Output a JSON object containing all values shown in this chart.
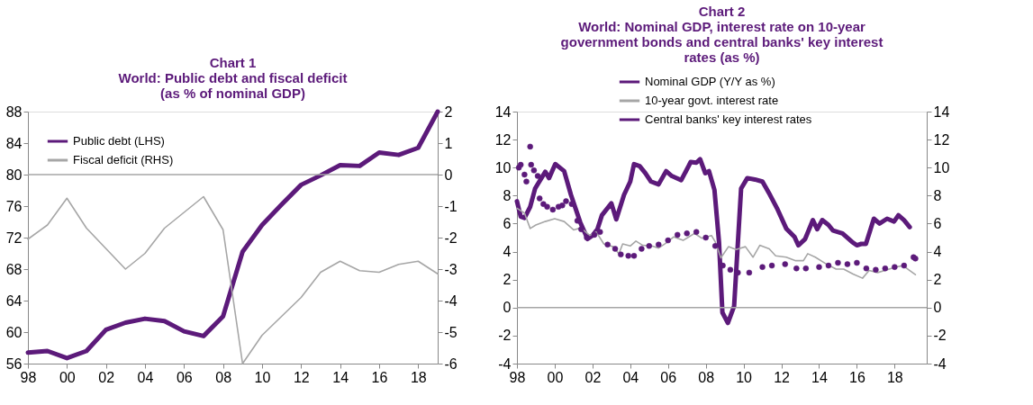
{
  "chart_data": [
    {
      "type": "line",
      "title": [
        "Chart 1",
        "World: Public debt and fiscal deficit",
        "(as % of nominal GDP)"
      ],
      "x": [
        1998,
        1999,
        2000,
        2001,
        2002,
        2003,
        2004,
        2005,
        2006,
        2007,
        2008,
        2009,
        2010,
        2011,
        2012,
        2013,
        2014,
        2015,
        2016,
        2017,
        2018,
        2019
      ],
      "series": [
        {
          "name": "Public debt (LHS)",
          "color": "#5c1a7a",
          "values": [
            57.4,
            57.6,
            56.7,
            57.6,
            60.3,
            61.2,
            61.7,
            61.4,
            60.1,
            59.5,
            62.0,
            70.2,
            73.6,
            76.2,
            78.7,
            79.9,
            81.2,
            81.1,
            82.8,
            82.5,
            83.4,
            88.0
          ]
        },
        {
          "name": "Fiscal deficit (RHS)",
          "color": "#a6a6a6",
          "axis": "y2",
          "values": [
            -2.05,
            -1.6,
            -0.75,
            -1.7,
            -2.35,
            -3.0,
            -2.5,
            -1.7,
            -1.2,
            -0.7,
            -1.75,
            -6.0,
            -5.1,
            -4.5,
            -3.9,
            -3.1,
            -2.75,
            -3.05,
            -3.1,
            -2.85,
            -2.75,
            -3.15
          ]
        }
      ],
      "xlim": [
        1998,
        2019
      ],
      "xticks": [
        {
          "value": 1998,
          "label": "98"
        },
        {
          "value": 2000,
          "label": "00"
        },
        {
          "value": 2002,
          "label": "02"
        },
        {
          "value": 2004,
          "label": "04"
        },
        {
          "value": 2006,
          "label": "06"
        },
        {
          "value": 2008,
          "label": "08"
        },
        {
          "value": 2010,
          "label": "10"
        },
        {
          "value": 2012,
          "label": "12"
        },
        {
          "value": 2014,
          "label": "14"
        },
        {
          "value": 2016,
          "label": "16"
        },
        {
          "value": 2018,
          "label": "18"
        }
      ],
      "ylim": [
        56,
        88
      ],
      "yticks": [
        56,
        60,
        64,
        68,
        72,
        76,
        80,
        84,
        88
      ],
      "y2lim": [
        -6,
        2
      ],
      "y2ticks": [
        -6,
        -5,
        -4,
        -3,
        -2,
        -1,
        0,
        1,
        2
      ],
      "ref_lines": [
        {
          "axis": "y2",
          "value": 0,
          "color": "#a6a6a6"
        }
      ],
      "legend": "top left",
      "grid": false
    },
    {
      "type": "line",
      "title": [
        "Chart 2",
        "World: Nominal GDP, interest rate on 10-year",
        "government bonds and central banks' key interest",
        "rates (as %)"
      ],
      "series": [
        {
          "name": "Nominal GDP (Y/Y as %)",
          "color": "#5c1a7a",
          "x": [
            1998.0,
            1998.2,
            1998.4,
            1998.7,
            1998.96,
            1999.5,
            1999.7,
            2000.03,
            2000.5,
            2000.86,
            2001.35,
            2001.74,
            2002.0,
            2002.26,
            2002.5,
            2003.0,
            2003.26,
            2003.67,
            2004.0,
            2004.2,
            2004.5,
            2004.8,
            2005.1,
            2005.5,
            2005.9,
            2006.2,
            2006.7,
            2007.2,
            2007.5,
            2007.7,
            2007.97,
            2008.17,
            2008.46,
            2008.7,
            2008.88,
            2009.17,
            2009.5,
            2009.87,
            2010.2,
            2010.6,
            2011.0,
            2011.4,
            2011.77,
            2012.26,
            2012.7,
            2012.9,
            2013.26,
            2013.67,
            2013.9,
            2014.17,
            2014.5,
            2014.74,
            2015.24,
            2015.74,
            2016.0,
            2016.23,
            2016.48,
            2016.9,
            2017.2,
            2017.6,
            2017.97,
            2018.2,
            2018.5,
            2018.8
          ],
          "values": [
            7.6,
            6.5,
            6.4,
            7.2,
            8.5,
            9.7,
            9.25,
            10.25,
            9.75,
            8.05,
            6.1,
            4.9,
            5.15,
            5.6,
            6.6,
            7.45,
            6.3,
            8.05,
            9.0,
            10.25,
            10.1,
            9.6,
            9.0,
            8.8,
            9.75,
            9.4,
            9.1,
            10.4,
            10.35,
            10.6,
            9.6,
            9.75,
            8.4,
            4.7,
            -0.35,
            -1.1,
            0.1,
            8.5,
            9.25,
            9.15,
            9.0,
            8.05,
            7.1,
            5.65,
            5.05,
            4.45,
            4.9,
            6.25,
            5.6,
            6.25,
            5.9,
            5.5,
            5.3,
            4.7,
            4.45,
            4.55,
            4.55,
            6.35,
            6.0,
            6.35,
            6.15,
            6.6,
            6.25,
            5.75
          ]
        },
        {
          "name": "10-year govt. interest rate",
          "color": "#a6a6a6",
          "x": [
            1998.0,
            1998.4,
            1998.7,
            1999.0,
            1999.5,
            2000.0,
            2000.5,
            2001.0,
            2001.4,
            2001.85,
            2002.2,
            2002.6,
            2003.1,
            2003.4,
            2003.6,
            2004.0,
            2004.3,
            2004.66,
            2005.15,
            2005.5,
            2006.0,
            2006.3,
            2006.8,
            2007.4,
            2007.8,
            2008.3,
            2008.5,
            2008.8,
            2009.2,
            2009.6,
            2010.1,
            2010.5,
            2010.86,
            2011.36,
            2011.7,
            2012.26,
            2012.76,
            2013.17,
            2013.4,
            2013.8,
            2014.4,
            2014.9,
            2015.3,
            2015.8,
            2016.3,
            2016.65,
            2017.1,
            2017.6,
            2018.05,
            2018.45,
            2018.8,
            2019.1
          ],
          "values": [
            7.1,
            6.75,
            5.65,
            5.9,
            6.15,
            6.35,
            6.15,
            5.55,
            5.7,
            5.15,
            5.4,
            4.55,
            4.35,
            3.85,
            4.55,
            4.4,
            4.75,
            4.45,
            4.4,
            4.25,
            4.7,
            5.05,
            4.8,
            5.3,
            4.95,
            5.15,
            4.7,
            3.55,
            4.35,
            4.15,
            4.35,
            3.6,
            4.45,
            4.2,
            3.7,
            3.6,
            3.35,
            3.35,
            3.85,
            3.6,
            3.1,
            2.75,
            2.75,
            2.4,
            2.1,
            2.65,
            2.5,
            2.7,
            2.9,
            3.0,
            2.65,
            2.35
          ]
        },
        {
          "name": "Central banks' key interest rates",
          "color": "#5c1a7a",
          "type": "scatter",
          "marker": "circle",
          "x": [
            1998.1,
            1998.2,
            1998.4,
            1998.5,
            1998.7,
            1998.75,
            1998.9,
            1999.1,
            1999.2,
            1999.4,
            1999.6,
            1999.9,
            2000.2,
            2000.4,
            2000.6,
            2000.9,
            2001.2,
            2001.4,
            2001.7,
            2002.1,
            2002.4,
            2002.8,
            2003.2,
            2003.5,
            2003.9,
            2004.2,
            2004.6,
            2005.0,
            2005.5,
            2006.0,
            2006.5,
            2007.0,
            2007.5,
            2008.0,
            2008.5,
            2008.9,
            2009.3,
            2009.7,
            2010.3,
            2011.0,
            2011.5,
            2012.2,
            2012.8,
            2013.3,
            2014.0,
            2014.5,
            2015.0,
            2015.5,
            2016.0,
            2016.5,
            2017.0,
            2017.5,
            2018.0,
            2018.5,
            2019.0,
            2019.1
          ],
          "values": [
            10.0,
            10.2,
            9.5,
            9.0,
            11.5,
            10.2,
            9.8,
            9.4,
            7.8,
            7.4,
            7.2,
            7.0,
            7.2,
            7.3,
            7.6,
            7.4,
            6.2,
            5.6,
            5.0,
            5.2,
            5.4,
            4.5,
            4.2,
            3.8,
            3.7,
            3.7,
            4.2,
            4.4,
            4.5,
            4.8,
            5.2,
            5.3,
            5.4,
            5.0,
            4.4,
            3.0,
            2.7,
            2.5,
            2.5,
            2.9,
            3.0,
            3.1,
            2.8,
            2.8,
            2.9,
            3.0,
            3.2,
            3.1,
            3.2,
            2.8,
            2.7,
            2.8,
            2.9,
            3.0,
            3.6,
            3.5
          ]
        }
      ],
      "xlim": [
        1998,
        2019.7
      ],
      "xticks": [
        {
          "value": 1998,
          "label": "98"
        },
        {
          "value": 2000,
          "label": "00"
        },
        {
          "value": 2002,
          "label": "02"
        },
        {
          "value": 2004,
          "label": "04"
        },
        {
          "value": 2006,
          "label": "06"
        },
        {
          "value": 2008,
          "label": "08"
        },
        {
          "value": 2010,
          "label": "10"
        },
        {
          "value": 2012,
          "label": "12"
        },
        {
          "value": 2014,
          "label": "14"
        },
        {
          "value": 2016,
          "label": "16"
        },
        {
          "value": 2018,
          "label": "18"
        }
      ],
      "ylim": [
        -4,
        14
      ],
      "yticks": [
        -4,
        -2,
        0,
        2,
        4,
        6,
        8,
        10,
        12,
        14
      ],
      "y2lim": [
        -4,
        14
      ],
      "y2ticks": [
        -4,
        -2,
        0,
        2,
        4,
        6,
        8,
        10,
        12,
        14
      ],
      "ref_lines": [
        {
          "axis": "y",
          "value": 0,
          "color": "#a6a6a6"
        }
      ],
      "legend": "top",
      "grid": false
    }
  ]
}
